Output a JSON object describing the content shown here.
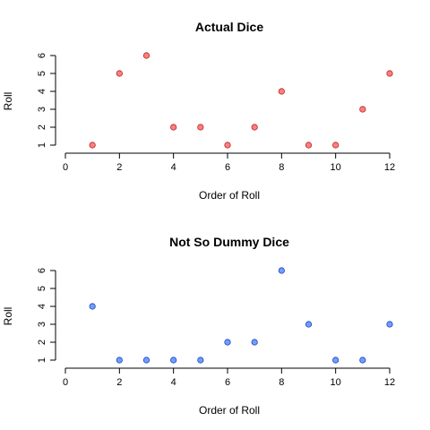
{
  "chart_data": [
    {
      "type": "scatter",
      "title": "Actual Dice",
      "xlabel": "Order of Roll",
      "ylabel": "Roll",
      "xlim": [
        0,
        12
      ],
      "ylim": [
        1,
        6
      ],
      "xticks": [
        0,
        2,
        4,
        6,
        8,
        10,
        12
      ],
      "yticks": [
        1,
        2,
        3,
        4,
        5,
        6
      ],
      "grid": false,
      "point_fill": "#ff7f7f",
      "point_stroke": "#b22222",
      "x": [
        1,
        2,
        3,
        4,
        5,
        6,
        7,
        8,
        9,
        10,
        11,
        12
      ],
      "y": [
        1,
        5,
        6,
        2,
        2,
        1,
        2,
        4,
        1,
        1,
        3,
        5
      ]
    },
    {
      "type": "scatter",
      "title": "Not So Dummy Dice",
      "xlabel": "Order of Roll",
      "ylabel": "Roll",
      "xlim": [
        0,
        12
      ],
      "ylim": [
        1,
        6
      ],
      "xticks": [
        0,
        2,
        4,
        6,
        8,
        10,
        12
      ],
      "yticks": [
        1,
        2,
        3,
        4,
        5,
        6
      ],
      "grid": false,
      "point_fill": "#6f9fff",
      "point_stroke": "#1f3fbf",
      "x": [
        1,
        2,
        3,
        4,
        5,
        6,
        7,
        8,
        9,
        10,
        11,
        12
      ],
      "y": [
        4,
        1,
        1,
        1,
        1,
        2,
        2,
        6,
        3,
        1,
        1,
        3
      ]
    }
  ]
}
